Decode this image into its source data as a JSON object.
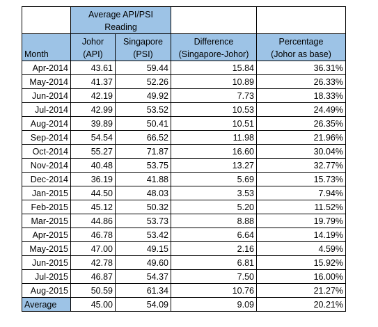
{
  "header": {
    "group_line1": "Average API/PSI",
    "group_line2": "Reading",
    "month": "Month",
    "johor_line1": "Johor",
    "johor_line2": "(API)",
    "singapore_line1": "Singapore",
    "singapore_line2": "(PSI)",
    "difference_line1": "Difference",
    "difference_line2": "(Singapore-Johor)",
    "percentage_line1": "Percentage",
    "percentage_line2": "(Johor as base)"
  },
  "rows": [
    {
      "month": "Apr-2014",
      "johor": "43.61",
      "singapore": "59.44",
      "difference": "15.84",
      "percentage": "36.31%"
    },
    {
      "month": "May-2014",
      "johor": "41.37",
      "singapore": "52.26",
      "difference": "10.89",
      "percentage": "26.33%"
    },
    {
      "month": "Jun-2014",
      "johor": "42.19",
      "singapore": "49.92",
      "difference": "7.73",
      "percentage": "18.33%"
    },
    {
      "month": "Jul-2014",
      "johor": "42.99",
      "singapore": "53.52",
      "difference": "10.53",
      "percentage": "24.49%"
    },
    {
      "month": "Aug-2014",
      "johor": "39.89",
      "singapore": "50.41",
      "difference": "10.51",
      "percentage": "26.35%"
    },
    {
      "month": "Sep-2014",
      "johor": "54.54",
      "singapore": "66.52",
      "difference": "11.98",
      "percentage": "21.96%"
    },
    {
      "month": "Oct-2014",
      "johor": "55.27",
      "singapore": "71.87",
      "difference": "16.60",
      "percentage": "30.04%"
    },
    {
      "month": "Nov-2014",
      "johor": "40.48",
      "singapore": "53.75",
      "difference": "13.27",
      "percentage": "32.77%"
    },
    {
      "month": "Dec-2014",
      "johor": "36.19",
      "singapore": "41.88",
      "difference": "5.69",
      "percentage": "15.73%"
    },
    {
      "month": "Jan-2015",
      "johor": "44.50",
      "singapore": "48.03",
      "difference": "3.53",
      "percentage": "7.94%"
    },
    {
      "month": "Feb-2015",
      "johor": "45.12",
      "singapore": "50.32",
      "difference": "5.20",
      "percentage": "11.52%"
    },
    {
      "month": "Mar-2015",
      "johor": "44.86",
      "singapore": "53.73",
      "difference": "8.88",
      "percentage": "19.79%"
    },
    {
      "month": "Apr-2015",
      "johor": "46.78",
      "singapore": "53.42",
      "difference": "6.64",
      "percentage": "14.19%"
    },
    {
      "month": "May-2015",
      "johor": "47.00",
      "singapore": "49.15",
      "difference": "2.16",
      "percentage": "4.59%"
    },
    {
      "month": "Jun-2015",
      "johor": "42.78",
      "singapore": "49.60",
      "difference": "6.81",
      "percentage": "15.92%"
    },
    {
      "month": "Jul-2015",
      "johor": "46.87",
      "singapore": "54.37",
      "difference": "7.50",
      "percentage": "16.00%"
    },
    {
      "month": "Aug-2015",
      "johor": "50.59",
      "singapore": "61.34",
      "difference": "10.76",
      "percentage": "21.27%"
    }
  ],
  "average": {
    "label": "Average",
    "johor": "45.00",
    "singapore": "54.09",
    "difference": "9.09",
    "percentage": "20.21%"
  },
  "colors": {
    "header_fill": "#9dc3e6",
    "border": "#000000"
  }
}
